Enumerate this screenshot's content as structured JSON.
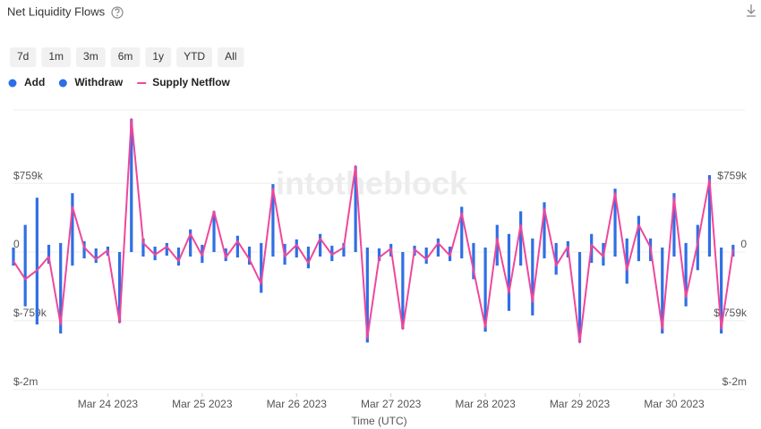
{
  "chart_data": {
    "type": "bar",
    "title": "Net Liquidity Flows",
    "range_buttons": [
      "7d",
      "1m",
      "3m",
      "6m",
      "1y",
      "YTD",
      "All"
    ],
    "watermark": "intotheblock",
    "xlabel": "Time (UTC)",
    "x": [
      0,
      3,
      6,
      9,
      12,
      15,
      18,
      21,
      24,
      27,
      30,
      33,
      36,
      39,
      42,
      45,
      48,
      51,
      54,
      57,
      60,
      63,
      66,
      69,
      72,
      75,
      78,
      81,
      84,
      87,
      90,
      93,
      96,
      99,
      102,
      105,
      108,
      111,
      114,
      117,
      120,
      123,
      126,
      129,
      132,
      135,
      138,
      141,
      144,
      147,
      150,
      153,
      156,
      159,
      162,
      165,
      168,
      171,
      174,
      177,
      180,
      183
    ],
    "xlim": [
      0,
      186
    ],
    "xticks": [
      {
        "value": 24,
        "label": "Mar 24 2023"
      },
      {
        "value": 48,
        "label": "Mar 25 2023"
      },
      {
        "value": 72,
        "label": "Mar 26 2023"
      },
      {
        "value": 96,
        "label": "Mar 27 2023"
      },
      {
        "value": 120,
        "label": "Mar 28 2023"
      },
      {
        "value": 144,
        "label": "Mar 29 2023"
      },
      {
        "value": 168,
        "label": "Mar 30 2023"
      }
    ],
    "ylim": [
      -1560000,
      1570000
    ],
    "yticks": [
      {
        "value": 759000,
        "label": "$759k"
      },
      {
        "value": 0,
        "label": "0"
      },
      {
        "value": -759000,
        "label": "$-759k"
      },
      {
        "value": -1518000,
        "label": "$-2m"
      }
    ],
    "grid": true,
    "series": [
      {
        "name": "Add",
        "type": "bar",
        "color": "#2f6fe4",
        "values": [
          50000,
          300000,
          600000,
          80000,
          100000,
          650000,
          120000,
          40000,
          60000,
          0,
          1470000,
          150000,
          60000,
          100000,
          50000,
          250000,
          80000,
          450000,
          40000,
          180000,
          60000,
          100000,
          750000,
          90000,
          140000,
          60000,
          200000,
          70000,
          100000,
          950000,
          50000,
          40000,
          90000,
          0,
          70000,
          50000,
          150000,
          60000,
          500000,
          100000,
          50000,
          300000,
          200000,
          450000,
          150000,
          550000,
          100000,
          120000,
          0,
          200000,
          100000,
          700000,
          150000,
          400000,
          150000,
          50000,
          650000,
          100000,
          300000,
          850000,
          50000,
          80000
        ]
      },
      {
        "name": "Withdraw",
        "type": "bar",
        "color": "#2f6fe4",
        "values": [
          -150000,
          -600000,
          -800000,
          -130000,
          -900000,
          -150000,
          -70000,
          -120000,
          -40000,
          -780000,
          0,
          -50000,
          -90000,
          -40000,
          -150000,
          -50000,
          -120000,
          0,
          -100000,
          -60000,
          -140000,
          -450000,
          -50000,
          -140000,
          -60000,
          -180000,
          -50000,
          -100000,
          -50000,
          0,
          -1000000,
          -100000,
          -50000,
          -850000,
          -40000,
          -130000,
          -50000,
          -100000,
          -70000,
          -300000,
          -880000,
          -150000,
          -650000,
          -150000,
          -700000,
          -70000,
          -250000,
          -60000,
          -1000000,
          -120000,
          -150000,
          -50000,
          -350000,
          -100000,
          -100000,
          -900000,
          -50000,
          -600000,
          -200000,
          -50000,
          -900000,
          -50000
        ]
      },
      {
        "name": "Supply Netflow",
        "type": "line",
        "color": "#f0479b",
        "values": [
          -100000,
          -300000,
          -200000,
          -50000,
          -800000,
          500000,
          50000,
          -80000,
          20000,
          -780000,
          1470000,
          100000,
          -30000,
          60000,
          -100000,
          200000,
          -40000,
          450000,
          -60000,
          120000,
          -80000,
          -350000,
          700000,
          -50000,
          80000,
          -120000,
          150000,
          -30000,
          50000,
          950000,
          -950000,
          -60000,
          40000,
          -850000,
          30000,
          -80000,
          100000,
          -40000,
          430000,
          -200000,
          -830000,
          150000,
          -450000,
          300000,
          -550000,
          480000,
          -150000,
          60000,
          -1000000,
          80000,
          -50000,
          650000,
          -200000,
          300000,
          50000,
          -850000,
          600000,
          -500000,
          100000,
          800000,
          -850000,
          30000
        ]
      }
    ]
  }
}
